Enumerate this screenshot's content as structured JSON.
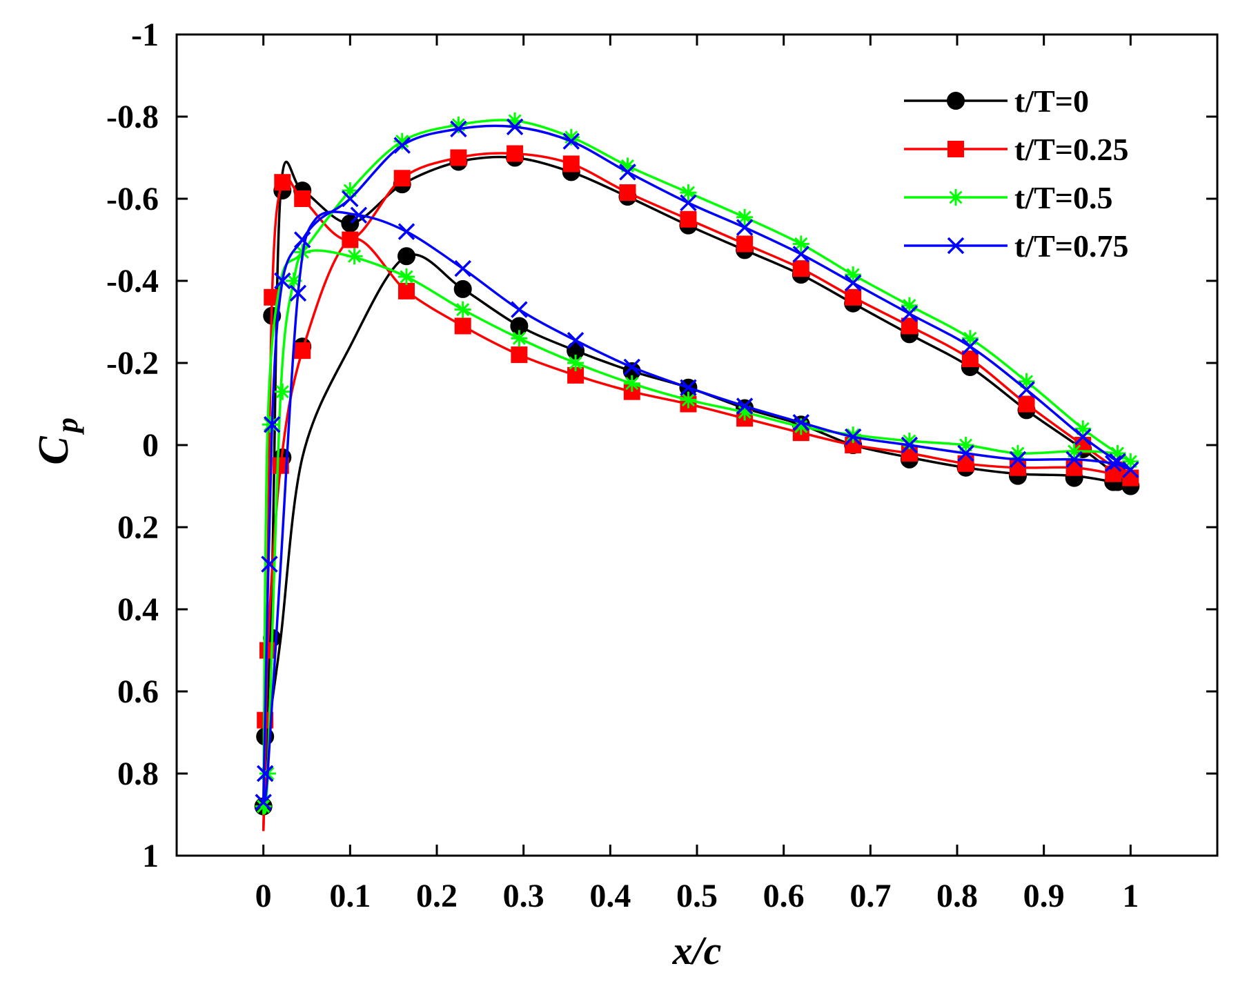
{
  "chart_data": {
    "type": "line",
    "title": "",
    "xlabel": "x/c",
    "ylabel": "C",
    "ylabel_subscript": "p",
    "xlim": [
      -0.1,
      1.1
    ],
    "ylim": [
      1,
      -1
    ],
    "y_reversed": true,
    "grid": false,
    "legend_position": "top-right",
    "xticks": [
      0,
      0.1,
      0.2,
      0.3,
      0.4,
      0.5,
      0.6,
      0.7,
      0.8,
      0.9,
      1
    ],
    "xtick_labels": [
      "0",
      "0.1",
      "0.2",
      "0.3",
      "0.4",
      "0.5",
      "0.6",
      "0.7",
      "0.8",
      "0.9",
      "1"
    ],
    "yticks": [
      -1,
      -0.8,
      -0.6,
      -0.4,
      -0.2,
      0,
      0.2,
      0.4,
      0.6,
      0.8,
      1
    ],
    "ytick_labels": [
      "-1",
      "-0.8",
      "-0.6",
      "-0.4",
      "-0.2",
      "0",
      "0.2",
      "0.4",
      "0.6",
      "0.8",
      "1"
    ],
    "series": [
      {
        "name": "t/T=0",
        "color": "#000000",
        "marker": "circle",
        "upper": {
          "x": [
            0,
            0.01,
            0.02,
            0.045,
            0.1,
            0.16,
            0.225,
            0.29,
            0.355,
            0.42,
            0.49,
            0.555,
            0.62,
            0.68,
            0.745,
            0.815,
            0.88,
            0.945,
            0.985,
            1
          ],
          "y": [
            0.88,
            0.32,
            -0.62,
            -0.62,
            -0.54,
            -0.635,
            -0.69,
            -0.7,
            -0.665,
            -0.605,
            -0.535,
            -0.475,
            -0.415,
            -0.345,
            -0.27,
            -0.19,
            -0.085,
            0.01,
            0.075,
            0.1
          ]
        },
        "lower": {
          "x": [
            0,
            0.005,
            0.02,
            0.045,
            0.1,
            0.165,
            0.23,
            0.295,
            0.36,
            0.425,
            0.49,
            0.555,
            0.62,
            0.68,
            0.745,
            0.81,
            0.87,
            0.935,
            0.98,
            1
          ],
          "y": [
            0.88,
            0.71,
            0.47,
            0.03,
            -0.24,
            -0.46,
            -0.38,
            -0.29,
            -0.23,
            -0.18,
            -0.14,
            -0.09,
            -0.05,
            0,
            0.03,
            0.055,
            0.07,
            0.075,
            0.09,
            0.1
          ]
        },
        "marker_points": {
          "x": [
            0,
            0.002,
            0.01,
            0.01,
            0.022,
            0.022,
            0.045,
            0.045,
            0.1,
            0.16,
            0.225,
            0.29,
            0.355,
            0.42,
            0.49,
            0.555,
            0.62,
            0.68,
            0.745,
            0.815,
            0.88,
            0.945,
            0.985,
            1,
            0.165,
            0.23,
            0.295,
            0.36,
            0.425,
            0.49,
            0.555,
            0.62,
            0.68,
            0.745,
            0.81,
            0.87,
            0.935,
            0.98
          ],
          "y": [
            0.88,
            0.71,
            0.47,
            -0.315,
            0.03,
            -0.62,
            -0.24,
            -0.62,
            -0.54,
            -0.635,
            -0.69,
            -0.7,
            -0.665,
            -0.605,
            -0.535,
            -0.475,
            -0.415,
            -0.345,
            -0.27,
            -0.19,
            -0.085,
            0.01,
            0.09,
            0.1,
            -0.46,
            -0.38,
            -0.29,
            -0.23,
            -0.18,
            -0.14,
            -0.09,
            -0.05,
            0,
            0.035,
            0.055,
            0.075,
            0.08,
            0.09
          ]
        }
      },
      {
        "name": "t/T=0.25",
        "color": "#ff0000",
        "marker": "square",
        "upper": {
          "x": [
            0,
            0.003,
            0.01,
            0.022,
            0.045,
            0.1,
            0.16,
            0.225,
            0.29,
            0.355,
            0.42,
            0.49,
            0.555,
            0.62,
            0.68,
            0.745,
            0.815,
            0.88,
            0.945,
            0.985,
            1
          ],
          "y": [
            0.94,
            0.67,
            -0.36,
            -0.64,
            -0.6,
            -0.5,
            -0.65,
            -0.7,
            -0.71,
            -0.685,
            -0.615,
            -0.55,
            -0.49,
            -0.43,
            -0.36,
            -0.29,
            -0.21,
            -0.1,
            0,
            0.06,
            0.08
          ]
        },
        "lower": {
          "x": [
            0,
            0.005,
            0.02,
            0.045,
            0.1,
            0.165,
            0.23,
            0.295,
            0.36,
            0.425,
            0.49,
            0.555,
            0.62,
            0.68,
            0.745,
            0.81,
            0.87,
            0.935,
            0.98,
            1
          ],
          "y": [
            0.94,
            0.5,
            0.05,
            -0.23,
            -0.5,
            -0.375,
            -0.29,
            -0.22,
            -0.17,
            -0.13,
            -0.1,
            -0.065,
            -0.03,
            0,
            0.02,
            0.045,
            0.055,
            0.055,
            0.07,
            0.08
          ]
        },
        "marker_points": {
          "x": [
            0.002,
            0.005,
            0.01,
            0.02,
            0.022,
            0.045,
            0.045,
            0.1,
            0.16,
            0.225,
            0.29,
            0.355,
            0.42,
            0.49,
            0.555,
            0.62,
            0.68,
            0.745,
            0.815,
            0.88,
            0.945,
            0.985,
            1,
            0.165,
            0.23,
            0.295,
            0.36,
            0.425,
            0.49,
            0.555,
            0.62,
            0.68,
            0.745,
            0.81,
            0.87,
            0.935,
            0.98
          ],
          "y": [
            0.67,
            0.5,
            -0.36,
            0.05,
            -0.64,
            -0.23,
            -0.6,
            -0.5,
            -0.65,
            -0.7,
            -0.71,
            -0.685,
            -0.615,
            -0.55,
            -0.49,
            -0.43,
            -0.36,
            -0.29,
            -0.21,
            -0.1,
            0,
            0.06,
            0.08,
            -0.375,
            -0.29,
            -0.22,
            -0.17,
            -0.13,
            -0.1,
            -0.065,
            -0.03,
            0,
            0.02,
            0.045,
            0.055,
            0.055,
            0.07
          ]
        }
      },
      {
        "name": "t/T=0.5",
        "color": "#00ff00",
        "marker": "asterisk",
        "upper": {
          "x": [
            0,
            0.005,
            0.02,
            0.045,
            0.1,
            0.16,
            0.225,
            0.29,
            0.355,
            0.42,
            0.49,
            0.555,
            0.62,
            0.68,
            0.745,
            0.815,
            0.88,
            0.945,
            0.985,
            1
          ],
          "y": [
            0.88,
            -0.05,
            -0.4,
            -0.47,
            -0.62,
            -0.74,
            -0.78,
            -0.79,
            -0.75,
            -0.68,
            -0.615,
            -0.555,
            -0.49,
            -0.415,
            -0.34,
            -0.26,
            -0.155,
            -0.04,
            0.02,
            0.04
          ]
        },
        "lower": {
          "x": [
            0,
            0.005,
            0.02,
            0.035,
            0.05,
            0.1,
            0.165,
            0.23,
            0.295,
            0.36,
            0.425,
            0.49,
            0.555,
            0.62,
            0.68,
            0.745,
            0.81,
            0.87,
            0.935,
            0.98,
            1
          ],
          "y": [
            0.88,
            0.8,
            -0.13,
            -0.4,
            -0.47,
            -0.46,
            -0.41,
            -0.33,
            -0.26,
            -0.2,
            -0.15,
            -0.11,
            -0.08,
            -0.045,
            -0.025,
            -0.01,
            0,
            0.02,
            0.015,
            0.02,
            0.04
          ]
        },
        "marker_points": {
          "x": [
            0,
            0.005,
            0.008,
            0.022,
            0.035,
            0.045,
            0.1,
            0.16,
            0.225,
            0.29,
            0.355,
            0.42,
            0.49,
            0.555,
            0.62,
            0.68,
            0.745,
            0.815,
            0.88,
            0.945,
            0.985,
            1,
            0.105,
            0.165,
            0.23,
            0.295,
            0.36,
            0.425,
            0.49,
            0.555,
            0.62,
            0.68,
            0.745,
            0.81,
            0.87,
            0.935
          ],
          "y": [
            0.88,
            0.8,
            -0.05,
            -0.13,
            -0.4,
            -0.47,
            -0.62,
            -0.74,
            -0.78,
            -0.79,
            -0.75,
            -0.68,
            -0.615,
            -0.555,
            -0.49,
            -0.415,
            -0.34,
            -0.26,
            -0.155,
            -0.04,
            0.02,
            0.04,
            -0.46,
            -0.41,
            -0.33,
            -0.26,
            -0.2,
            -0.15,
            -0.11,
            -0.08,
            -0.045,
            -0.025,
            -0.01,
            0,
            0.02,
            0.015
          ]
        }
      },
      {
        "name": "t/T=0.75",
        "color": "#0000ff",
        "marker": "x",
        "upper": {
          "x": [
            0,
            0.01,
            0.022,
            0.045,
            0.065,
            0.1,
            0.16,
            0.225,
            0.29,
            0.355,
            0.42,
            0.49,
            0.555,
            0.62,
            0.68,
            0.745,
            0.815,
            0.88,
            0.945,
            0.985,
            1
          ],
          "y": [
            0.87,
            -0.05,
            -0.4,
            -0.5,
            -0.55,
            -0.6,
            -0.73,
            -0.77,
            -0.775,
            -0.74,
            -0.665,
            -0.59,
            -0.53,
            -0.465,
            -0.395,
            -0.32,
            -0.24,
            -0.135,
            -0.02,
            0.04,
            0.06
          ]
        },
        "lower": {
          "x": [
            0,
            0.005,
            0.02,
            0.04,
            0.06,
            0.11,
            0.165,
            0.23,
            0.295,
            0.36,
            0.425,
            0.49,
            0.555,
            0.62,
            0.68,
            0.745,
            0.81,
            0.87,
            0.935,
            0.98,
            1
          ],
          "y": [
            0.87,
            0.8,
            0.29,
            -0.37,
            -0.55,
            -0.56,
            -0.52,
            -0.43,
            -0.33,
            -0.255,
            -0.19,
            -0.14,
            -0.095,
            -0.055,
            -0.02,
            0,
            0.02,
            0.035,
            0.035,
            0.045,
            0.06
          ]
        },
        "marker_points": {
          "x": [
            0,
            0.002,
            0.007,
            0.01,
            0.022,
            0.04,
            0.045,
            0.1,
            0.11,
            0.16,
            0.225,
            0.29,
            0.355,
            0.42,
            0.49,
            0.555,
            0.62,
            0.68,
            0.745,
            0.815,
            0.88,
            0.945,
            0.985,
            1,
            0.165,
            0.23,
            0.295,
            0.36,
            0.425,
            0.49,
            0.555,
            0.62,
            0.68,
            0.745,
            0.81,
            0.87,
            0.935,
            0.98
          ],
          "y": [
            0.87,
            0.8,
            0.29,
            -0.05,
            -0.4,
            -0.37,
            -0.5,
            -0.6,
            -0.56,
            -0.73,
            -0.77,
            -0.775,
            -0.74,
            -0.665,
            -0.59,
            -0.53,
            -0.465,
            -0.395,
            -0.32,
            -0.24,
            -0.135,
            -0.02,
            0.04,
            0.06,
            -0.52,
            -0.43,
            -0.33,
            -0.255,
            -0.19,
            -0.14,
            -0.095,
            -0.055,
            -0.02,
            0,
            0.02,
            0.035,
            0.035,
            0.045
          ]
        }
      }
    ]
  }
}
